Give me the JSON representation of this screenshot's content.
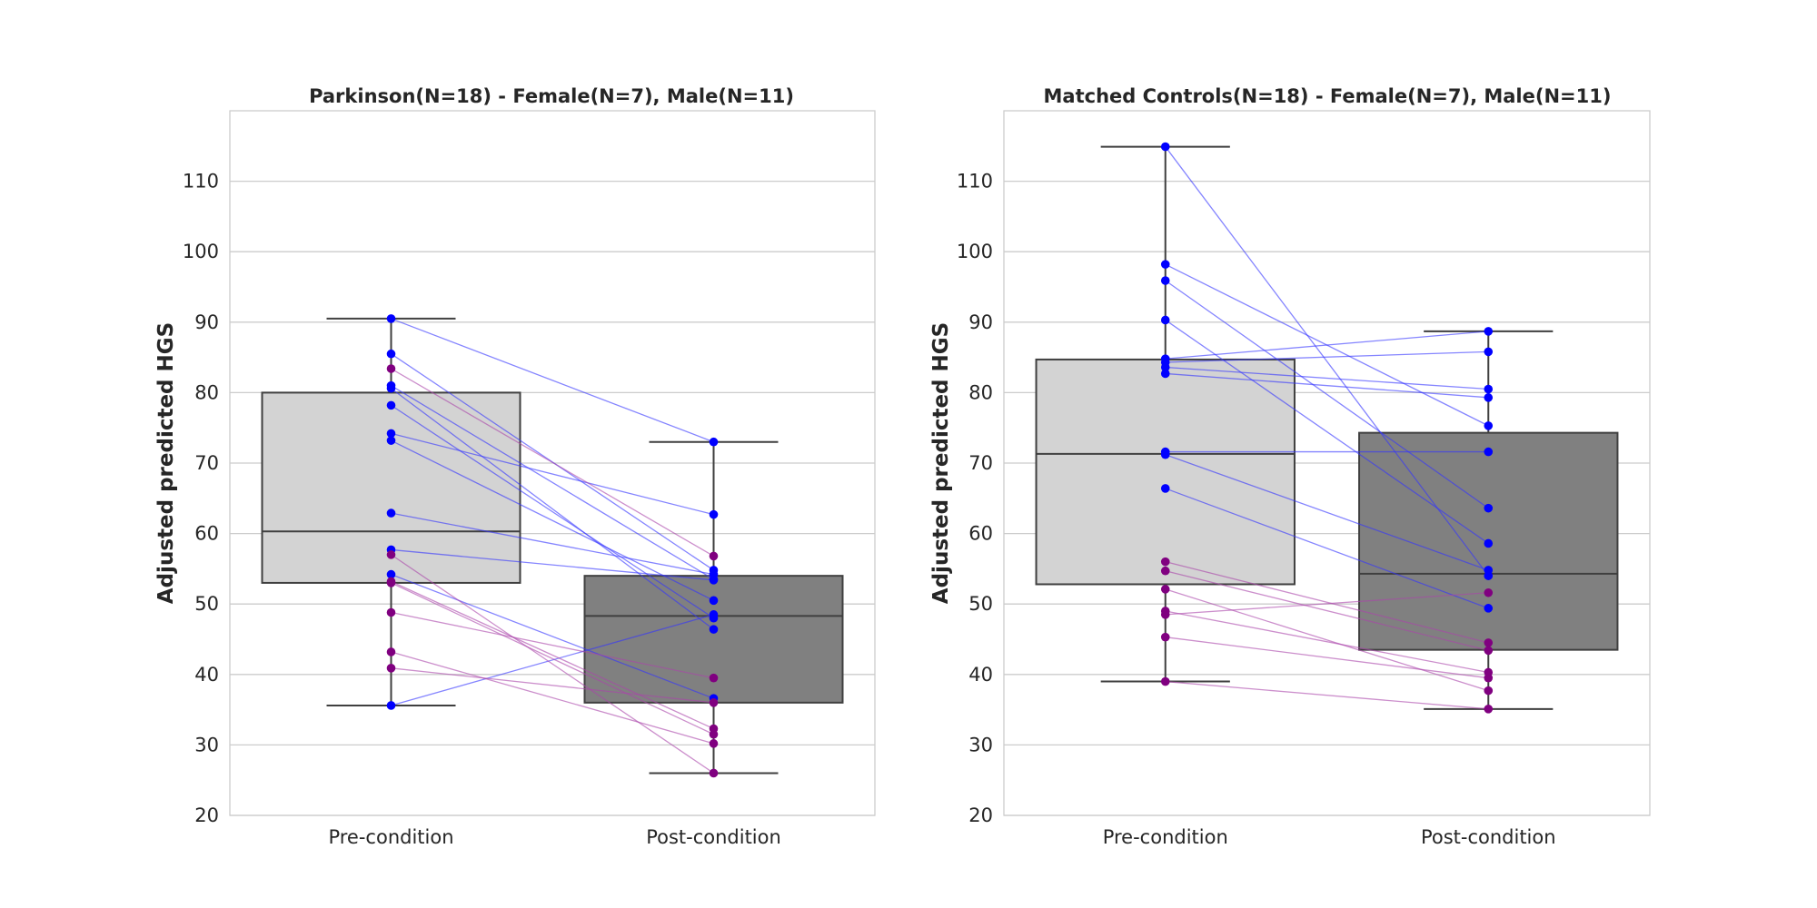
{
  "chart_data": [
    {
      "type": "box",
      "title": "Parkinson(N=18) - Female(N=7), Male(N=11)",
      "ylabel": "Adjusted predicted HGS",
      "xlabel": "",
      "categories": [
        "Pre-condition",
        "Post-condition"
      ],
      "ylim": [
        20,
        120
      ],
      "yticks": [
        20,
        30,
        40,
        50,
        60,
        70,
        80,
        90,
        100,
        110
      ],
      "grid": true,
      "boxes": [
        {
          "name": "Pre-condition",
          "whisker_low": 35.6,
          "q1": 53.0,
          "median": 60.3,
          "q3": 80.0,
          "whisker_high": 90.5,
          "color": "#d3d3d3"
        },
        {
          "name": "Post-condition",
          "whisker_low": 26.0,
          "q1": 36.0,
          "median": 48.3,
          "q3": 54.0,
          "whisker_high": 73.0,
          "color": "#808080"
        }
      ],
      "pairs": [
        {
          "group": "male",
          "pre": 90.5,
          "post": 73.0
        },
        {
          "group": "male",
          "pre": 85.5,
          "post": 54.8
        },
        {
          "group": "male",
          "pre": 81.0,
          "post": 53.5
        },
        {
          "group": "male",
          "pre": 80.6,
          "post": 46.4
        },
        {
          "group": "male",
          "pre": 78.2,
          "post": 48.0
        },
        {
          "group": "male",
          "pre": 74.2,
          "post": 62.7
        },
        {
          "group": "male",
          "pre": 73.2,
          "post": 50.5
        },
        {
          "group": "male",
          "pre": 62.9,
          "post": 54.2
        },
        {
          "group": "male",
          "pre": 57.7,
          "post": 53.4
        },
        {
          "group": "male",
          "pre": 54.2,
          "post": 36.6
        },
        {
          "group": "male",
          "pre": 35.6,
          "post": 48.5
        },
        {
          "group": "female",
          "pre": 83.4,
          "post": 56.8
        },
        {
          "group": "female",
          "pre": 57.0,
          "post": 26.0
        },
        {
          "group": "female",
          "pre": 53.2,
          "post": 32.3
        },
        {
          "group": "female",
          "pre": 48.8,
          "post": 39.5
        },
        {
          "group": "female",
          "pre": 43.2,
          "post": 30.2
        },
        {
          "group": "female",
          "pre": 40.9,
          "post": 36.0
        },
        {
          "group": "female",
          "pre": 53.0,
          "post": 31.5
        }
      ]
    },
    {
      "type": "box",
      "title": "Matched Controls(N=18) - Female(N=7), Male(N=11)",
      "ylabel": "Adjusted predicted HGS",
      "xlabel": "",
      "categories": [
        "Pre-condition",
        "Post-condition"
      ],
      "ylim": [
        20,
        120
      ],
      "yticks": [
        20,
        30,
        40,
        50,
        60,
        70,
        80,
        90,
        100,
        110
      ],
      "grid": true,
      "boxes": [
        {
          "name": "Pre-condition",
          "whisker_low": 39.0,
          "q1": 52.8,
          "median": 71.3,
          "q3": 84.7,
          "whisker_high": 114.9,
          "color": "#d3d3d3"
        },
        {
          "name": "Post-condition",
          "whisker_low": 35.1,
          "q1": 43.5,
          "median": 54.3,
          "q3": 74.3,
          "whisker_high": 88.7,
          "color": "#808080"
        }
      ],
      "pairs": [
        {
          "group": "male",
          "pre": 114.9,
          "post": 54.0
        },
        {
          "group": "male",
          "pre": 98.2,
          "post": 75.3
        },
        {
          "group": "male",
          "pre": 95.9,
          "post": 63.6
        },
        {
          "group": "male",
          "pre": 90.3,
          "post": 58.6
        },
        {
          "group": "male",
          "pre": 84.8,
          "post": 88.7
        },
        {
          "group": "male",
          "pre": 84.3,
          "post": 85.8
        },
        {
          "group": "male",
          "pre": 83.6,
          "post": 80.5
        },
        {
          "group": "male",
          "pre": 82.7,
          "post": 79.3
        },
        {
          "group": "male",
          "pre": 71.6,
          "post": 71.6
        },
        {
          "group": "male",
          "pre": 71.2,
          "post": 54.8
        },
        {
          "group": "male",
          "pre": 66.4,
          "post": 49.4
        },
        {
          "group": "female",
          "pre": 56.0,
          "post": 44.5
        },
        {
          "group": "female",
          "pre": 54.7,
          "post": 43.4
        },
        {
          "group": "female",
          "pre": 52.1,
          "post": 37.7
        },
        {
          "group": "female",
          "pre": 49.0,
          "post": 40.3
        },
        {
          "group": "female",
          "pre": 48.5,
          "post": 51.6
        },
        {
          "group": "female",
          "pre": 45.3,
          "post": 39.5
        },
        {
          "group": "female",
          "pre": 39.0,
          "post": 35.1
        }
      ]
    }
  ],
  "colors": {
    "male": "#0000ff",
    "female": "#800080",
    "male_line": "#3333ff",
    "female_line": "#aa44aa"
  }
}
